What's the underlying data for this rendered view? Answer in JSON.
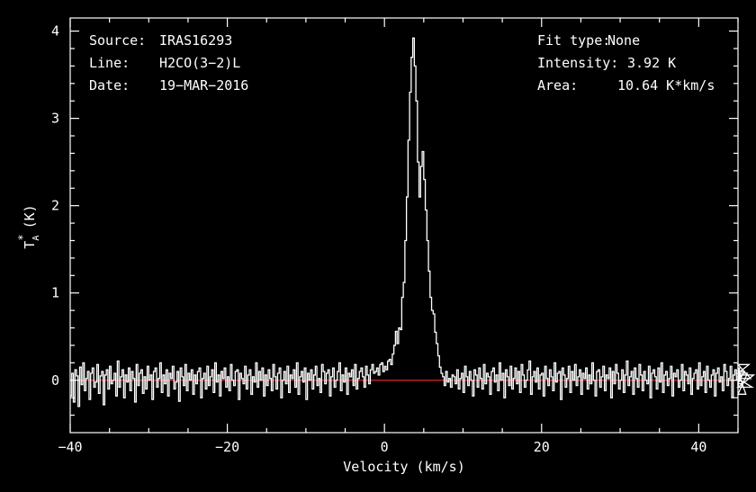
{
  "info_left": {
    "source_label": "Source:",
    "source_value": "IRAS16293",
    "line_label": "Line:",
    "line_value": "H2CO(3−2)L",
    "date_label": "Date:",
    "date_value": "19−MAR−2016"
  },
  "info_right": {
    "fit_label": "Fit type:",
    "fit_value": "None",
    "intensity_label": "Intensity:",
    "intensity_value": "3.92 K",
    "area_label": "Area:",
    "area_value": "10.64 K*km/s"
  },
  "colors": {
    "background": "#000000",
    "frame": "#ffffff",
    "spectrum": "#ffffff",
    "baseline": "#cc2222"
  },
  "chart_data": {
    "type": "line",
    "step": true,
    "xlabel": "Velocity (km/s)",
    "ylabel_main": "T",
    "ylabel_sub": "A",
    "ylabel_sup": "*",
    "ylabel_unit": "(K)",
    "xlim": [
      -40,
      45
    ],
    "ylim": [
      -0.6,
      4.15
    ],
    "xticks": [
      -40,
      -20,
      0,
      20,
      40
    ],
    "xtick_labels": [
      "−40",
      "−20",
      "0",
      "20",
      "40"
    ],
    "yticks": [
      0,
      1,
      2,
      3,
      4
    ],
    "ytick_labels": [
      "0",
      "1",
      "2",
      "3",
      "4"
    ],
    "baseline_y": 0,
    "series": [
      {
        "x_start": -40,
        "x_step": 0.2,
        "values": [
          -0.18,
          0.08,
          -0.25,
          0.12,
          0.05,
          -0.3,
          0.15,
          -0.05,
          0.2,
          -0.12,
          0.02,
          0.1,
          -0.22,
          0.08,
          0.14,
          -0.08,
          -0.02,
          0.18,
          -0.15,
          0.05,
          0.1,
          -0.28,
          0.06,
          0.12,
          -0.1,
          0.16,
          -0.04,
          0.0,
          0.08,
          -0.18,
          0.22,
          -0.08,
          0.04,
          0.12,
          -0.2,
          0.06,
          -0.02,
          0.14,
          -0.12,
          0.1,
          0.02,
          -0.25,
          0.18,
          -0.06,
          0.08,
          0.12,
          -0.15,
          0.04,
          -0.1,
          0.16,
          0.0,
          0.06,
          -0.22,
          0.1,
          0.14,
          -0.08,
          0.02,
          0.2,
          -0.14,
          0.06,
          -0.04,
          0.12,
          -0.18,
          0.08,
          0.02,
          0.16,
          -0.1,
          -0.02,
          0.1,
          -0.24,
          0.14,
          0.04,
          -0.06,
          0.18,
          -0.12,
          0.08,
          0.0,
          0.12,
          -0.16,
          0.06,
          -0.04,
          0.1,
          0.14,
          -0.2,
          0.02,
          0.08,
          -0.1,
          0.16,
          -0.06,
          0.04,
          0.12,
          -0.14,
          0.2,
          -0.02,
          0.06,
          -0.18,
          0.1,
          0.02,
          0.14,
          -0.08,
          0.04,
          -0.12,
          0.18,
          0.0,
          -0.06,
          0.1,
          0.12,
          -0.22,
          0.08,
          0.02,
          -0.04,
          0.16,
          -0.1,
          0.06,
          0.12,
          -0.16,
          0.04,
          -0.02,
          0.2,
          -0.08,
          0.1,
          0.0,
          0.14,
          -0.18,
          0.06,
          -0.06,
          0.12,
          0.02,
          -0.12,
          0.18,
          0.04,
          -0.1,
          0.08,
          0.14,
          -0.2,
          0.0,
          0.1,
          -0.04,
          0.16,
          -0.14,
          0.06,
          0.02,
          0.12,
          -0.08,
          0.2,
          -0.16,
          0.04,
          0.1,
          -0.02,
          0.14,
          -0.22,
          0.08,
          0.0,
          0.12,
          -0.1,
          0.06,
          0.16,
          -0.06,
          0.02,
          -0.14,
          0.18,
          0.1,
          -0.04,
          0.08,
          0.12,
          -0.18,
          0.04,
          0.14,
          -0.08,
          0.0,
          0.1,
          0.2,
          -0.12,
          0.06,
          -0.02,
          0.14,
          -0.16,
          0.08,
          0.04,
          0.12,
          -0.06,
          0.18,
          -0.1,
          0.02,
          0.1,
          0.14,
          0.04,
          -0.08,
          0.16,
          0.06,
          -0.04,
          0.12,
          0.18,
          0.08,
          0.1,
          0.14,
          0.06,
          0.18,
          0.2,
          0.1,
          0.16,
          0.12,
          0.22,
          0.24,
          0.18,
          0.3,
          0.4,
          0.56,
          0.42,
          0.6,
          0.58,
          0.95,
          1.12,
          1.6,
          2.1,
          2.75,
          3.3,
          3.7,
          3.92,
          3.6,
          3.2,
          2.5,
          2.1,
          2.45,
          2.62,
          2.3,
          1.95,
          1.6,
          1.25,
          0.95,
          0.8,
          0.76,
          0.55,
          0.42,
          0.28,
          0.15,
          0.08,
          0.04,
          -0.06,
          0.1,
          -0.02,
          0.02,
          -0.08,
          0.06,
          0.04,
          -0.04,
          0.12,
          -0.1,
          0.02,
          0.08,
          -0.14,
          0.16,
          0.04,
          -0.06,
          0.1,
          0.0,
          -0.18,
          0.12,
          0.06,
          -0.08,
          0.14,
          0.02,
          -0.1,
          0.18,
          -0.04,
          0.08,
          0.04,
          -0.16,
          0.1,
          0.14,
          -0.02,
          0.06,
          -0.12,
          0.2,
          0.0,
          0.08,
          -0.2,
          0.12,
          0.04,
          -0.06,
          0.16,
          -0.1,
          0.02,
          0.14,
          -0.04,
          0.1,
          -0.14,
          0.18,
          0.06,
          -0.08,
          0.0,
          0.12,
          0.22,
          -0.16,
          0.04,
          0.1,
          -0.02,
          0.14,
          -0.1,
          0.06,
          0.08,
          -0.18,
          0.16,
          0.02,
          -0.06,
          0.12,
          0.04,
          -0.12,
          0.2,
          -0.02,
          0.08,
          0.1,
          -0.22,
          0.14,
          0.06,
          -0.08,
          0.02,
          0.16,
          -0.14,
          0.1,
          0.0,
          0.18,
          -0.06,
          0.04,
          0.12,
          -0.16,
          0.08,
          0.02,
          0.14,
          -0.1,
          0.06,
          -0.04,
          0.2,
          0.0,
          -0.18,
          0.1,
          0.12,
          -0.08,
          0.04,
          0.16,
          -0.12,
          0.06,
          0.02,
          0.14,
          -0.2,
          0.1,
          -0.04,
          0.18,
          0.08,
          -0.1,
          0.0,
          0.12,
          -0.14,
          0.06,
          0.22,
          -0.06,
          0.04,
          0.1,
          -0.16,
          0.14,
          0.02,
          -0.08,
          0.18,
          0.06,
          -0.12,
          0.1,
          0.0,
          -0.04,
          0.16,
          -0.2,
          0.08,
          0.12,
          0.04,
          -0.1,
          0.14,
          -0.02,
          0.2,
          -0.14,
          0.06,
          0.1,
          -0.06,
          0.02,
          0.16,
          -0.18,
          0.08,
          0.04,
          0.12,
          -0.08,
          0.0,
          0.18,
          -0.12,
          0.1,
          0.06,
          -0.04,
          0.14,
          -0.16,
          0.02,
          0.08,
          0.12,
          -0.1,
          0.2,
          -0.06,
          0.04,
          0.1,
          -0.14,
          0.16,
          0.0,
          -0.08,
          0.06,
          0.12,
          -0.18,
          0.08,
          0.14,
          -0.02,
          0.04,
          -0.12,
          0.18,
          0.1,
          -0.06,
          0.02,
          0.16,
          -0.2,
          0.06,
          0.12,
          0.0,
          -0.1,
          0.14,
          0.04,
          -0.04,
          0.1,
          -0.16,
          0.08,
          0.18,
          0.02,
          -0.08,
          0.06
        ]
      }
    ]
  }
}
